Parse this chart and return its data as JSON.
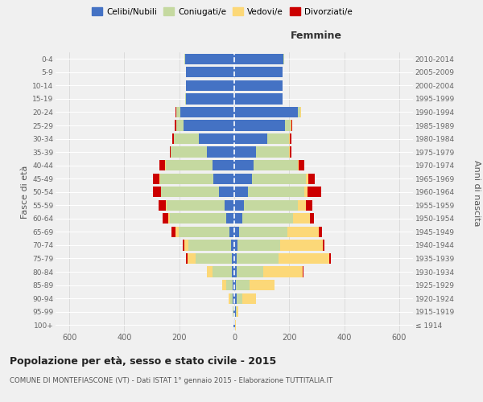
{
  "age_groups": [
    "100+",
    "95-99",
    "90-94",
    "85-89",
    "80-84",
    "75-79",
    "70-74",
    "65-69",
    "60-64",
    "55-59",
    "50-54",
    "45-49",
    "40-44",
    "35-39",
    "30-34",
    "25-29",
    "20-24",
    "15-19",
    "10-14",
    "5-9",
    "0-4"
  ],
  "birth_years": [
    "≤ 1914",
    "1915-1919",
    "1920-1924",
    "1925-1929",
    "1930-1934",
    "1935-1939",
    "1940-1944",
    "1945-1949",
    "1950-1954",
    "1955-1959",
    "1960-1964",
    "1965-1969",
    "1970-1974",
    "1975-1979",
    "1980-1984",
    "1985-1989",
    "1990-1994",
    "1995-1999",
    "2000-2004",
    "2005-2009",
    "2010-2014"
  ],
  "male": {
    "celibi": [
      2,
      3,
      5,
      5,
      10,
      10,
      12,
      18,
      30,
      35,
      55,
      75,
      80,
      100,
      130,
      185,
      195,
      175,
      175,
      175,
      180
    ],
    "coniugati": [
      2,
      3,
      10,
      25,
      70,
      130,
      155,
      185,
      205,
      210,
      210,
      195,
      170,
      130,
      90,
      25,
      15,
      5,
      2,
      2,
      2
    ],
    "vedovi": [
      0,
      0,
      5,
      15,
      20,
      30,
      15,
      10,
      5,
      5,
      2,
      2,
      2,
      0,
      0,
      2,
      2,
      0,
      0,
      0,
      0
    ],
    "divorziati": [
      0,
      0,
      0,
      0,
      0,
      5,
      5,
      15,
      20,
      25,
      30,
      25,
      20,
      5,
      5,
      5,
      2,
      0,
      0,
      0,
      0
    ]
  },
  "female": {
    "nubili": [
      2,
      5,
      8,
      5,
      10,
      10,
      12,
      18,
      30,
      35,
      50,
      65,
      70,
      80,
      120,
      185,
      230,
      175,
      175,
      175,
      180
    ],
    "coniugate": [
      2,
      5,
      20,
      50,
      95,
      150,
      155,
      175,
      185,
      195,
      205,
      195,
      160,
      120,
      80,
      20,
      10,
      2,
      2,
      2,
      2
    ],
    "vedove": [
      2,
      5,
      50,
      90,
      145,
      185,
      155,
      115,
      60,
      30,
      12,
      8,
      5,
      2,
      2,
      2,
      2,
      0,
      0,
      0,
      0
    ],
    "divorziate": [
      0,
      0,
      0,
      0,
      2,
      5,
      5,
      10,
      15,
      25,
      50,
      25,
      20,
      5,
      5,
      5,
      2,
      0,
      0,
      0,
      0
    ]
  },
  "colors": {
    "celibi": "#4472c4",
    "coniugati": "#c5d9a0",
    "vedovi": "#fcd878",
    "divorziati": "#cc0000"
  },
  "xlim": 650,
  "title": "Popolazione per età, sesso e stato civile - 2015",
  "subtitle": "COMUNE DI MONTEFIASCONE (VT) - Dati ISTAT 1° gennaio 2015 - Elaborazione TUTTITALIA.IT",
  "ylabel_left": "Fasce di età",
  "ylabel_right": "Anni di nascita",
  "xlabel_right": "Femmine",
  "bg_color": "#f0f0f0",
  "grid_color": "#cccccc"
}
